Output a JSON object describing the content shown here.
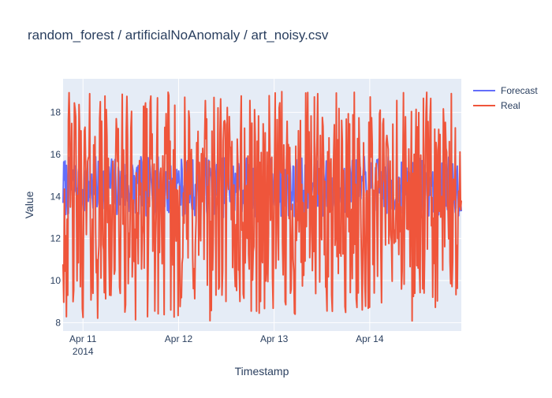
{
  "chart_data": {
    "type": "line",
    "title": "random_forest / artificialNoAnomaly / art_noisy.csv",
    "xlabel": "Timestamp",
    "ylabel": "Value",
    "x_range": [
      "2014-04-10 19:00",
      "2014-04-14 23:00"
    ],
    "ylim": [
      7.6,
      19.6
    ],
    "x_ticks": [
      {
        "value": "2014-04-11",
        "label": "Apr 11",
        "sublabel": "2014"
      },
      {
        "value": "2014-04-12",
        "label": "Apr 12",
        "sublabel": ""
      },
      {
        "value": "2014-04-13",
        "label": "Apr 13",
        "sublabel": ""
      },
      {
        "value": "2014-04-14",
        "label": "Apr 14",
        "sublabel": ""
      }
    ],
    "y_ticks": [
      8,
      10,
      12,
      14,
      16,
      18
    ],
    "grid": true,
    "legend_position": "top-right",
    "series": [
      {
        "name": "Forecast",
        "color": "#636efa",
        "kind": "noisy",
        "min": 13.0,
        "max": 15.9,
        "points": 600,
        "seed": 7
      },
      {
        "name": "Real",
        "color": "#ef553b",
        "kind": "noisy",
        "min": 8.0,
        "max": 19.0,
        "points": 600,
        "seed": 42
      }
    ]
  }
}
